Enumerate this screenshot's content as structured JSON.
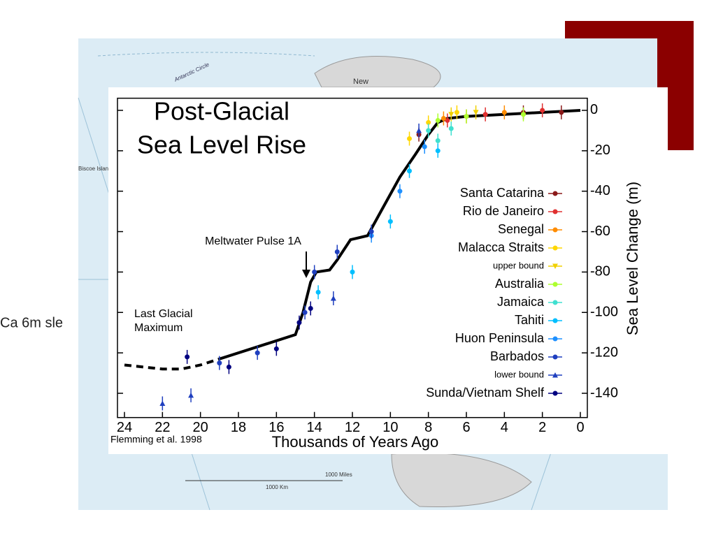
{
  "slide_text": "Ca 6m sle",
  "map_labels": {
    "north": "New",
    "circle": "Antarctic Circle",
    "islands": "Biscoe Islands",
    "miles": "1000 Miles",
    "km": "1000 Km"
  },
  "chart_data": {
    "type": "scatter",
    "title": [
      "Post-Glacial",
      "Sea Level Rise"
    ],
    "x_label": "Thousands of Years Ago",
    "y_label": "Sea Level Change (m)",
    "annotations": {
      "pulse": "Meltwater Pulse 1A",
      "lgm": [
        "Last Glacial",
        "Maximum"
      ],
      "source": "Flemming et al. 1998"
    },
    "xlim": [
      24,
      0
    ],
    "xticks": [
      24,
      22,
      20,
      18,
      16,
      14,
      12,
      10,
      8,
      6,
      4,
      2,
      0
    ],
    "ylim": [
      -152,
      6
    ],
    "yticks": [
      0,
      -20,
      -40,
      -60,
      -80,
      -100,
      -120,
      -140
    ],
    "curve": [
      {
        "style": "dashed",
        "x": [
          24,
          22,
          21,
          20,
          19
        ],
        "values": [
          -126,
          -128,
          -128,
          -126,
          -123
        ]
      },
      {
        "style": "solid",
        "x": [
          19,
          17,
          15,
          14.6,
          14.2,
          13.9,
          13.2,
          12.8,
          12.1,
          11.2,
          10.5,
          9.5,
          8.7,
          8,
          7.5,
          7,
          6,
          4,
          2,
          0
        ],
        "values": [
          -123,
          -117,
          -111,
          -100,
          -85,
          -80,
          -79,
          -74,
          -64,
          -62,
          -50,
          -33,
          -22,
          -12,
          -6,
          -4,
          -3,
          -2,
          -1,
          0
        ]
      }
    ],
    "series": [
      {
        "name": "Santa Catarina",
        "color": "#8b1a1a",
        "marker": "circle",
        "x": [
          1,
          3,
          8.5
        ],
        "values": [
          -1,
          -1,
          -12
        ]
      },
      {
        "name": "Rio de Janeiro",
        "color": "#e03030",
        "marker": "circle",
        "x": [
          2,
          5,
          7
        ],
        "values": [
          0,
          -2,
          -5
        ]
      },
      {
        "name": "Senegal",
        "color": "#ff8c00",
        "marker": "circle",
        "x": [
          4,
          6,
          7.2
        ],
        "values": [
          -1,
          -3,
          -4
        ]
      },
      {
        "name": "Malacca Straits",
        "color": "#ffd700",
        "marker": "circle",
        "x": [
          6.5,
          8,
          9
        ],
        "values": [
          -1,
          -6,
          -14
        ]
      },
      {
        "name": "upper bound",
        "color": "#f0d000",
        "marker": "triangle-down",
        "x": [
          6.8,
          5.5
        ],
        "values": [
          -2,
          -1
        ]
      },
      {
        "name": "Australia",
        "color": "#adff2f",
        "marker": "circle",
        "x": [
          7.5,
          6,
          3
        ],
        "values": [
          -5,
          -3,
          -2
        ]
      },
      {
        "name": "Jamaica",
        "color": "#40e0d0",
        "marker": "circle",
        "x": [
          8,
          7.5,
          6.8
        ],
        "values": [
          -10,
          -15,
          -9
        ]
      },
      {
        "name": "Tahiti",
        "color": "#00bfff",
        "marker": "circle",
        "x": [
          13.8,
          12,
          10,
          9,
          7.5
        ],
        "values": [
          -90,
          -80,
          -55,
          -30,
          -20
        ]
      },
      {
        "name": "Huon Peninsula",
        "color": "#1e90ff",
        "marker": "circle",
        "x": [
          11,
          9.5,
          8.2
        ],
        "values": [
          -62,
          -40,
          -18
        ]
      },
      {
        "name": "Barbados",
        "color": "#1f3fbf",
        "marker": "circle",
        "x": [
          19,
          17,
          14.5,
          14,
          12.8,
          11
        ],
        "values": [
          -125,
          -120,
          -100,
          -80,
          -70,
          -60
        ]
      },
      {
        "name": "lower bound",
        "color": "#1f3fbf",
        "marker": "triangle-up",
        "x": [
          22,
          20.5,
          13,
          8.5
        ],
        "values": [
          -145,
          -141,
          -93,
          -10
        ]
      },
      {
        "name": "Sunda/Vietnam Shelf",
        "color": "#000080",
        "marker": "circle",
        "x": [
          20.7,
          18.5,
          16,
          14.8,
          14.2
        ],
        "values": [
          -122,
          -127,
          -118,
          -105,
          -98
        ]
      }
    ]
  }
}
